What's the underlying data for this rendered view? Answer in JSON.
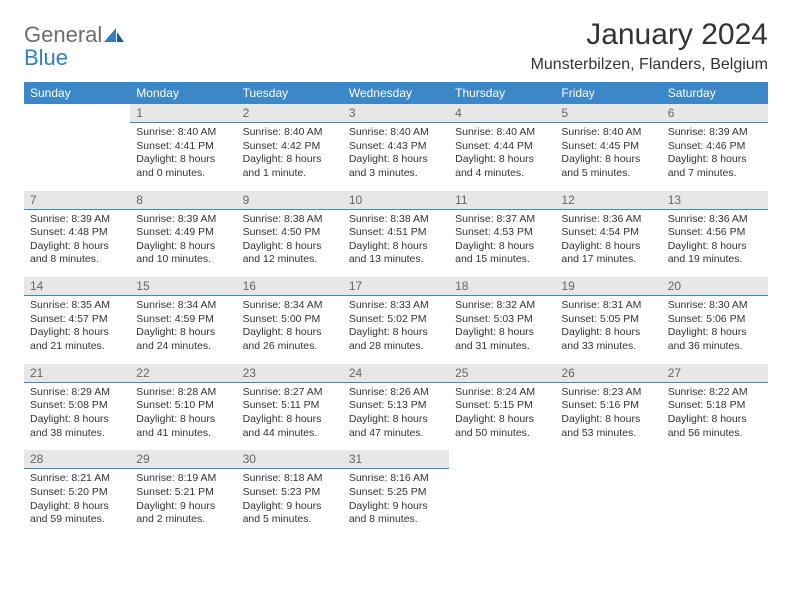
{
  "brand": {
    "general": "General",
    "blue": "Blue"
  },
  "title": "January 2024",
  "location": "Munsterbilzen, Flanders, Belgium",
  "colors": {
    "header_bg": "#3c87c7",
    "header_text": "#ffffff",
    "daynum_bg": "#e7e7e7",
    "daynum_text": "#666666",
    "rule": "#3c87c7",
    "body_text": "#333333",
    "logo_general": "#6e6e6e",
    "logo_blue": "#2f7fc1",
    "page_bg": "#ffffff"
  },
  "typography": {
    "title_fontsize": 30,
    "location_fontsize": 16,
    "header_fontsize": 12,
    "daynum_fontsize": 12,
    "body_fontsize": 10.5,
    "logo_fontsize": 22
  },
  "dow": [
    "Sunday",
    "Monday",
    "Tuesday",
    "Wednesday",
    "Thursday",
    "Friday",
    "Saturday"
  ],
  "weeks": [
    [
      null,
      {
        "n": "1",
        "sr": "Sunrise: 8:40 AM",
        "ss": "Sunset: 4:41 PM",
        "dl": "Daylight: 8 hours and 0 minutes."
      },
      {
        "n": "2",
        "sr": "Sunrise: 8:40 AM",
        "ss": "Sunset: 4:42 PM",
        "dl": "Daylight: 8 hours and 1 minute."
      },
      {
        "n": "3",
        "sr": "Sunrise: 8:40 AM",
        "ss": "Sunset: 4:43 PM",
        "dl": "Daylight: 8 hours and 3 minutes."
      },
      {
        "n": "4",
        "sr": "Sunrise: 8:40 AM",
        "ss": "Sunset: 4:44 PM",
        "dl": "Daylight: 8 hours and 4 minutes."
      },
      {
        "n": "5",
        "sr": "Sunrise: 8:40 AM",
        "ss": "Sunset: 4:45 PM",
        "dl": "Daylight: 8 hours and 5 minutes."
      },
      {
        "n": "6",
        "sr": "Sunrise: 8:39 AM",
        "ss": "Sunset: 4:46 PM",
        "dl": "Daylight: 8 hours and 7 minutes."
      }
    ],
    [
      {
        "n": "7",
        "sr": "Sunrise: 8:39 AM",
        "ss": "Sunset: 4:48 PM",
        "dl": "Daylight: 8 hours and 8 minutes."
      },
      {
        "n": "8",
        "sr": "Sunrise: 8:39 AM",
        "ss": "Sunset: 4:49 PM",
        "dl": "Daylight: 8 hours and 10 minutes."
      },
      {
        "n": "9",
        "sr": "Sunrise: 8:38 AM",
        "ss": "Sunset: 4:50 PM",
        "dl": "Daylight: 8 hours and 12 minutes."
      },
      {
        "n": "10",
        "sr": "Sunrise: 8:38 AM",
        "ss": "Sunset: 4:51 PM",
        "dl": "Daylight: 8 hours and 13 minutes."
      },
      {
        "n": "11",
        "sr": "Sunrise: 8:37 AM",
        "ss": "Sunset: 4:53 PM",
        "dl": "Daylight: 8 hours and 15 minutes."
      },
      {
        "n": "12",
        "sr": "Sunrise: 8:36 AM",
        "ss": "Sunset: 4:54 PM",
        "dl": "Daylight: 8 hours and 17 minutes."
      },
      {
        "n": "13",
        "sr": "Sunrise: 8:36 AM",
        "ss": "Sunset: 4:56 PM",
        "dl": "Daylight: 8 hours and 19 minutes."
      }
    ],
    [
      {
        "n": "14",
        "sr": "Sunrise: 8:35 AM",
        "ss": "Sunset: 4:57 PM",
        "dl": "Daylight: 8 hours and 21 minutes."
      },
      {
        "n": "15",
        "sr": "Sunrise: 8:34 AM",
        "ss": "Sunset: 4:59 PM",
        "dl": "Daylight: 8 hours and 24 minutes."
      },
      {
        "n": "16",
        "sr": "Sunrise: 8:34 AM",
        "ss": "Sunset: 5:00 PM",
        "dl": "Daylight: 8 hours and 26 minutes."
      },
      {
        "n": "17",
        "sr": "Sunrise: 8:33 AM",
        "ss": "Sunset: 5:02 PM",
        "dl": "Daylight: 8 hours and 28 minutes."
      },
      {
        "n": "18",
        "sr": "Sunrise: 8:32 AM",
        "ss": "Sunset: 5:03 PM",
        "dl": "Daylight: 8 hours and 31 minutes."
      },
      {
        "n": "19",
        "sr": "Sunrise: 8:31 AM",
        "ss": "Sunset: 5:05 PM",
        "dl": "Daylight: 8 hours and 33 minutes."
      },
      {
        "n": "20",
        "sr": "Sunrise: 8:30 AM",
        "ss": "Sunset: 5:06 PM",
        "dl": "Daylight: 8 hours and 36 minutes."
      }
    ],
    [
      {
        "n": "21",
        "sr": "Sunrise: 8:29 AM",
        "ss": "Sunset: 5:08 PM",
        "dl": "Daylight: 8 hours and 38 minutes."
      },
      {
        "n": "22",
        "sr": "Sunrise: 8:28 AM",
        "ss": "Sunset: 5:10 PM",
        "dl": "Daylight: 8 hours and 41 minutes."
      },
      {
        "n": "23",
        "sr": "Sunrise: 8:27 AM",
        "ss": "Sunset: 5:11 PM",
        "dl": "Daylight: 8 hours and 44 minutes."
      },
      {
        "n": "24",
        "sr": "Sunrise: 8:26 AM",
        "ss": "Sunset: 5:13 PM",
        "dl": "Daylight: 8 hours and 47 minutes."
      },
      {
        "n": "25",
        "sr": "Sunrise: 8:24 AM",
        "ss": "Sunset: 5:15 PM",
        "dl": "Daylight: 8 hours and 50 minutes."
      },
      {
        "n": "26",
        "sr": "Sunrise: 8:23 AM",
        "ss": "Sunset: 5:16 PM",
        "dl": "Daylight: 8 hours and 53 minutes."
      },
      {
        "n": "27",
        "sr": "Sunrise: 8:22 AM",
        "ss": "Sunset: 5:18 PM",
        "dl": "Daylight: 8 hours and 56 minutes."
      }
    ],
    [
      {
        "n": "28",
        "sr": "Sunrise: 8:21 AM",
        "ss": "Sunset: 5:20 PM",
        "dl": "Daylight: 8 hours and 59 minutes."
      },
      {
        "n": "29",
        "sr": "Sunrise: 8:19 AM",
        "ss": "Sunset: 5:21 PM",
        "dl": "Daylight: 9 hours and 2 minutes."
      },
      {
        "n": "30",
        "sr": "Sunrise: 8:18 AM",
        "ss": "Sunset: 5:23 PM",
        "dl": "Daylight: 9 hours and 5 minutes."
      },
      {
        "n": "31",
        "sr": "Sunrise: 8:16 AM",
        "ss": "Sunset: 5:25 PM",
        "dl": "Daylight: 9 hours and 8 minutes."
      },
      null,
      null,
      null
    ]
  ]
}
